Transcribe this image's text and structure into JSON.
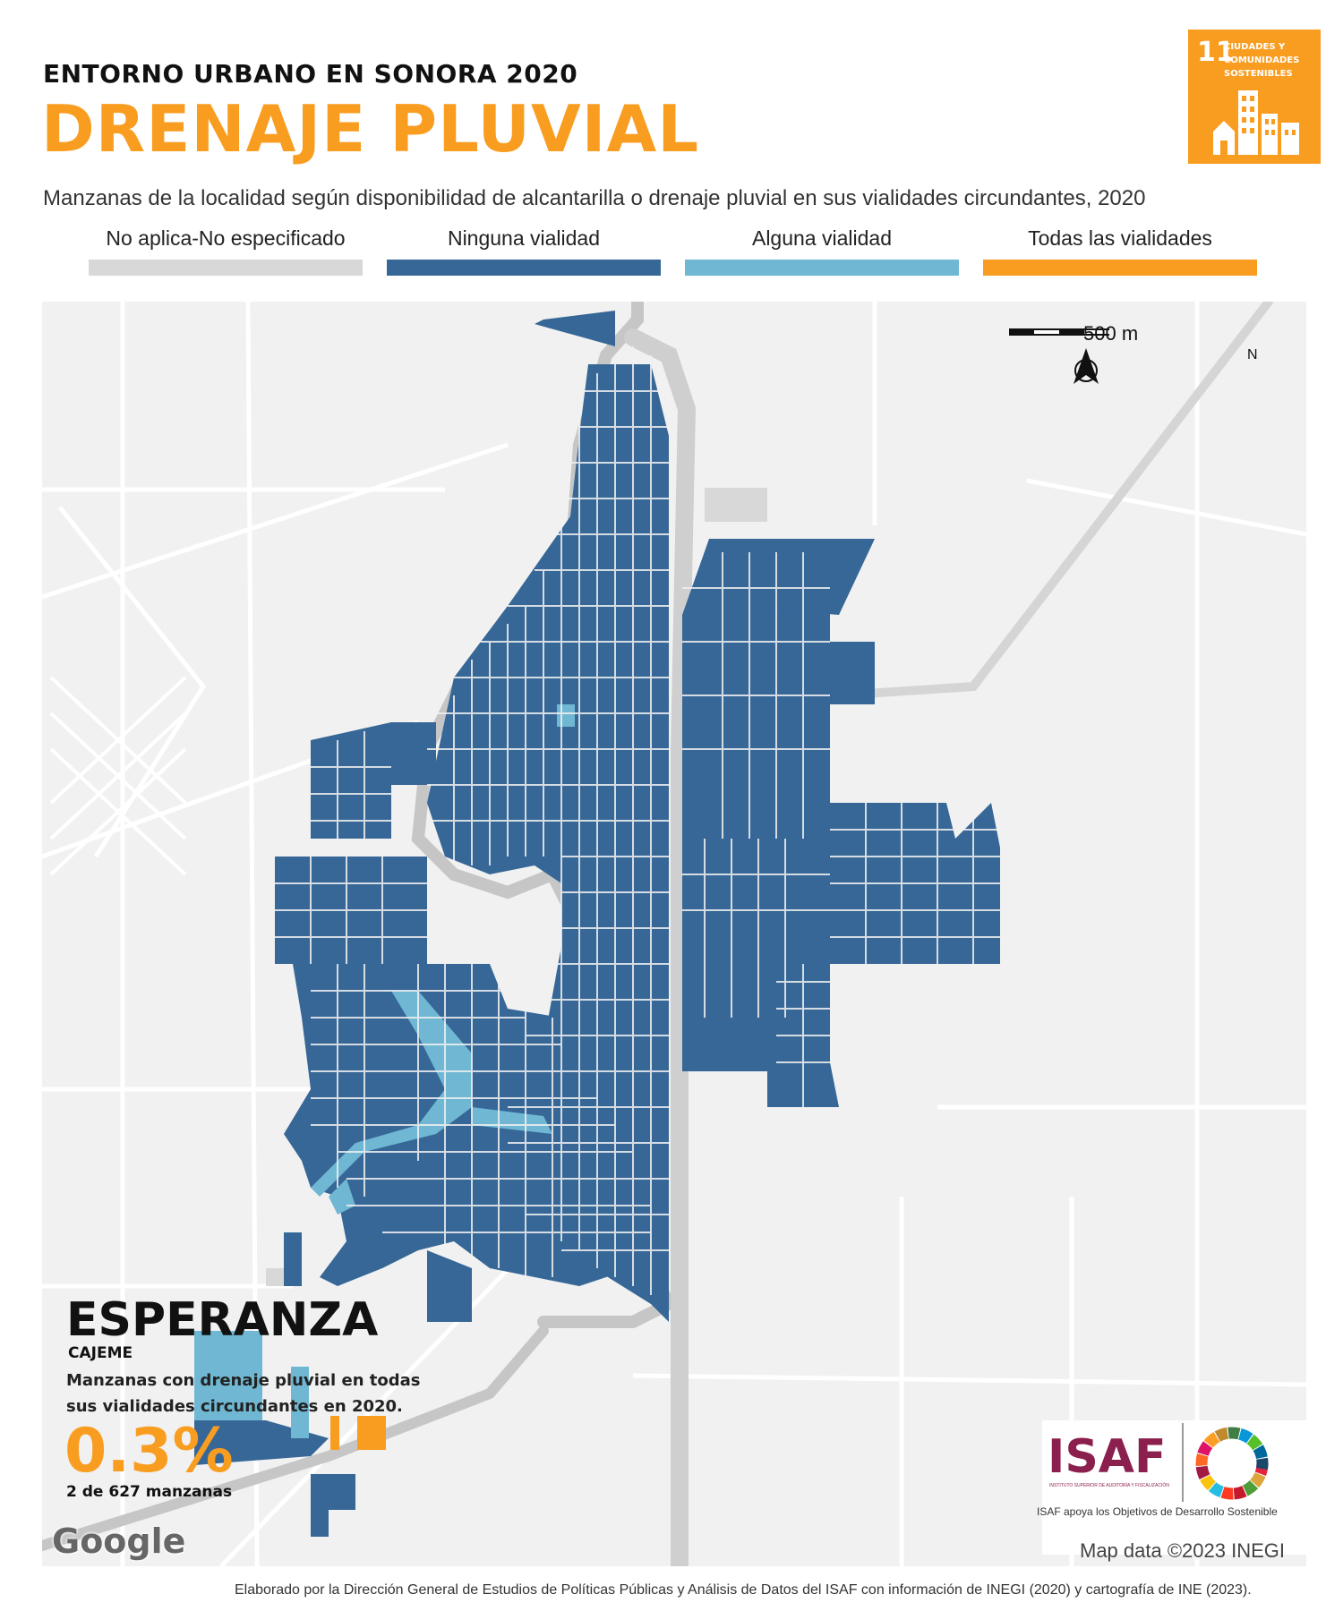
{
  "header": {
    "supertitle": "ENTORNO URBANO EN SONORA 2020",
    "title": "DRENAJE PLUVIAL",
    "subtitle": "Manzanas de la localidad según disponibilidad de alcantarilla o drenaje pluvial en sus vialidades circundantes, 2020"
  },
  "sdg_badge": {
    "number": "11",
    "text_line1": "CIUDADES Y",
    "text_line2": "COMUNIDADES",
    "text_line3": "SOSTENIBLES",
    "color": "#f99d21"
  },
  "legend": [
    {
      "label": "No aplica-No especificado",
      "color": "#d8d8d8"
    },
    {
      "label": "Ninguna vialidad",
      "color": "#366797"
    },
    {
      "label": "Alguna vialidad",
      "color": "#6fb7d3"
    },
    {
      "label": "Todas las vialidades",
      "color": "#f99d21"
    }
  ],
  "map": {
    "scale_label": "500 m",
    "north_label": "N",
    "place_name": "ESPERANZA",
    "municipality": "CAJEME",
    "stat_description": "Manzanas con drenaje pluvial en todas sus vialidades circundantes en 2020.",
    "stat_percent": "0.3%",
    "stat_count": "2 de 627 manzanas",
    "google_watermark": "Google",
    "map_data": "Map data ©2023 INEGI",
    "isaf_logo": "ISAF",
    "isaf_full_name": "INSTITUTO SUPERIOR DE AUDITORÍA Y FISCALIZACIÓN",
    "isaf_caption": "ISAF apoya los Objetivos de Desarrollo Sostenible"
  },
  "footer": {
    "credits": "Elaborado por la Dirección General de Estudios de Políticas Públicas y Análisis de Datos del ISAF con información de INEGI (2020) y cartografía de INE (2023)."
  }
}
